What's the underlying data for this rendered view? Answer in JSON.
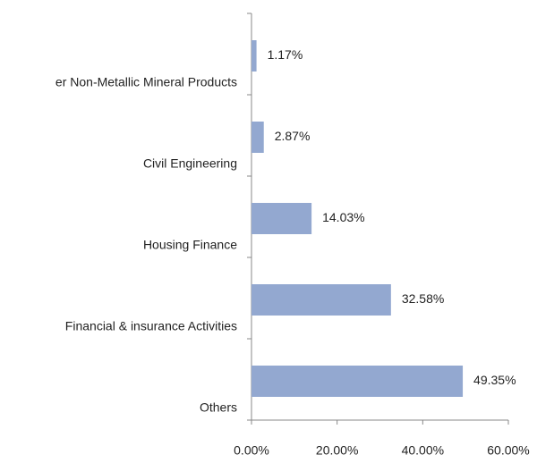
{
  "chart_data": {
    "type": "barh",
    "categories": [
      "er Non-Metallic Mineral Products",
      "Civil Engineering",
      "Housing Finance",
      "Financial & insurance Activities",
      "Others"
    ],
    "values": [
      1.17,
      2.87,
      14.03,
      32.58,
      49.35
    ],
    "value_labels": [
      "1.17%",
      "2.87%",
      "14.03%",
      "32.58%",
      "49.35%"
    ],
    "color": "#93a8d0",
    "xlim": [
      0,
      60
    ],
    "xticks": [
      {
        "value": 0,
        "label": "0.00%"
      },
      {
        "value": 20,
        "label": "20.00%"
      },
      {
        "value": 40,
        "label": "40.00%"
      },
      {
        "value": 60,
        "label": "60.00%"
      }
    ],
    "grid": false
  }
}
